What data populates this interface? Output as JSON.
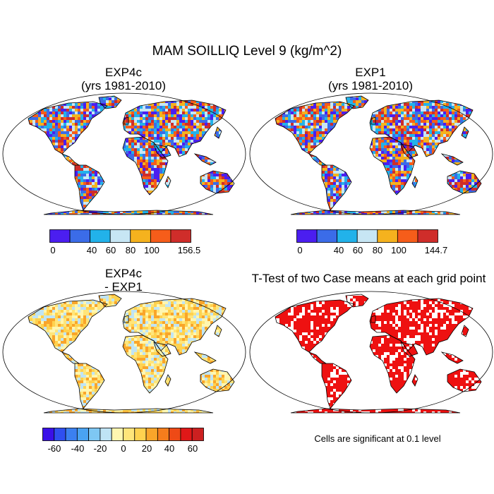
{
  "figure": {
    "title": "MAM SOILLIQ Level 9 (kg/m^2)"
  },
  "panels": [
    {
      "id": "exp4c",
      "title_line1": "EXP4c",
      "title_line2": "(yrs 1981-2010)",
      "colorbar": {
        "colors": [
          "#4b1ef0",
          "#3b6ce8",
          "#22b2ea",
          "#c7e6f4",
          "#f5b21e",
          "#f65d1a",
          "#cf2d2a"
        ],
        "tick_labels": [
          "0",
          "40",
          "60",
          "80",
          "100",
          "156.5"
        ]
      }
    },
    {
      "id": "exp1",
      "title_line1": "EXP1",
      "title_line2": "(yrs 1981-2010)",
      "colorbar": {
        "colors": [
          "#4b1ef0",
          "#3b6ce8",
          "#22b2ea",
          "#c7e6f4",
          "#f5b21e",
          "#f65d1a",
          "#cf2d2a"
        ],
        "tick_labels": [
          "0",
          "40",
          "60",
          "80",
          "100",
          "144.7"
        ]
      }
    },
    {
      "id": "diff",
      "title_line1": "EXP4c",
      "title_line2": "- EXP1",
      "colorbar": {
        "colors": [
          "#3a10e8",
          "#2f4ff0",
          "#3b80f0",
          "#4aa3f2",
          "#7ec7f3",
          "#bfe4f5",
          "#fff6b0",
          "#ffe57a",
          "#ffd24f",
          "#f9a52a",
          "#f57d1c",
          "#ee4a16",
          "#e01818",
          "#cc2020"
        ],
        "tick_labels": [
          "-60",
          "-40",
          "-20",
          "0",
          "20",
          "40",
          "60"
        ]
      }
    },
    {
      "id": "ttest",
      "title": "T-Test of two Case means at each grid point",
      "note": "Cells are significant at 0.1 level"
    }
  ],
  "map_colors": {
    "exp4c": {
      "ocean": "#ffffff",
      "land": [
        "#f65d1a",
        "#cf2d2a",
        "#f5b21e",
        "#22b2ea",
        "#3b6ce8",
        "#4b1ef0",
        "#c7e6f4"
      ]
    },
    "exp1": {
      "ocean": "#ffffff",
      "land": [
        "#22b2ea",
        "#3b6ce8",
        "#4b1ef0",
        "#c7e6f4",
        "#f5b21e",
        "#f65d1a",
        "#cf2d2a"
      ]
    },
    "diff": {
      "ocean": "#ffffff",
      "land": [
        "#ffe57a",
        "#ffd24f",
        "#f9a52a",
        "#fff6b0",
        "#bfe4f5"
      ]
    },
    "ttest": {
      "ocean": "#ffffff",
      "land": [
        "#ee1111",
        "#ee1111",
        "#ee1111",
        "#ffffff"
      ]
    }
  }
}
